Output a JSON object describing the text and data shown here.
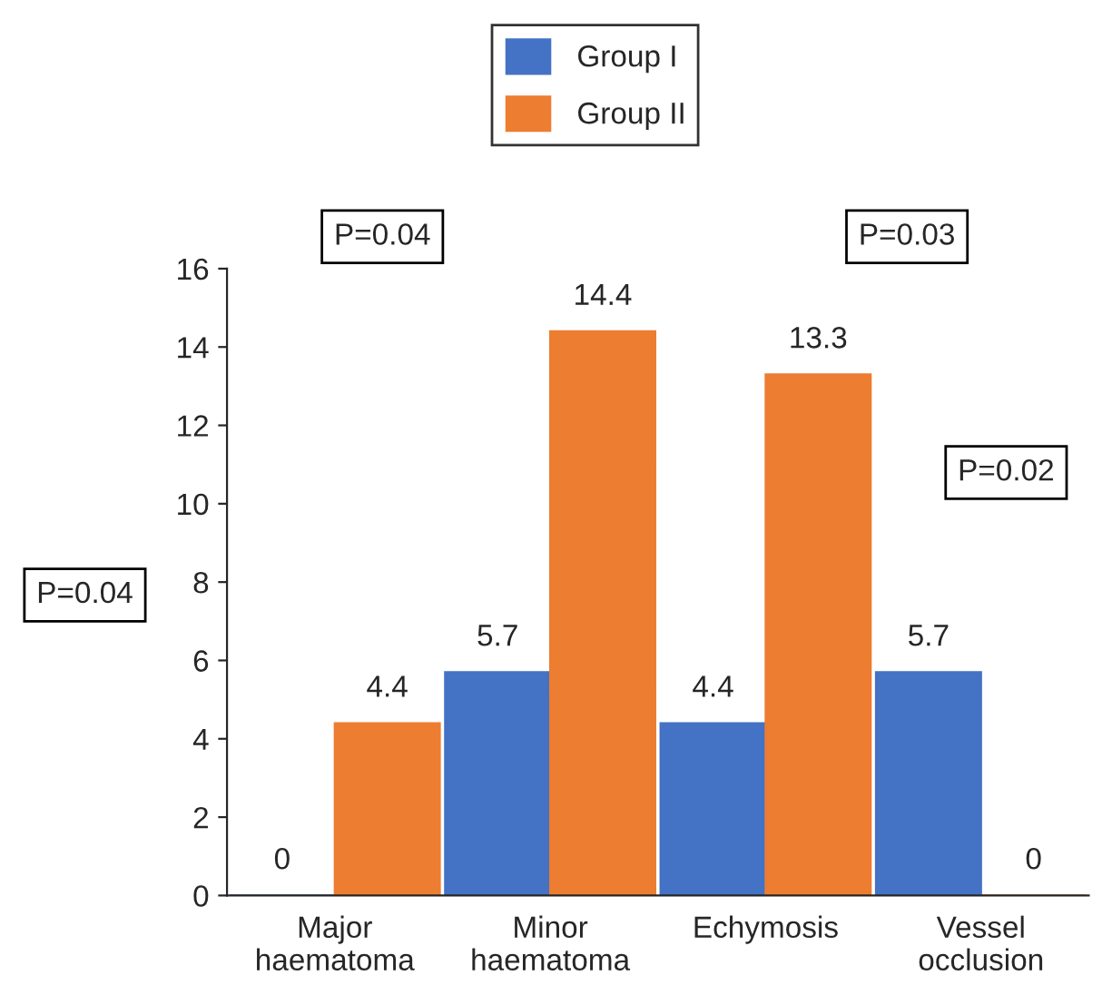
{
  "chart_data": {
    "type": "bar",
    "categories": [
      "Major\nhaematoma",
      "Minor\nhaematoma",
      "Echymosis",
      "Vessel\nocclusion"
    ],
    "series": [
      {
        "name": "Group I",
        "color": "#4472c4",
        "values": [
          0,
          5.7,
          4.4,
          5.7
        ]
      },
      {
        "name": "Group II",
        "color": "#ed7d31",
        "values": [
          4.4,
          14.4,
          13.3,
          0
        ]
      }
    ],
    "ylim": [
      0,
      16
    ],
    "yticks": [
      0,
      2,
      4,
      6,
      8,
      10,
      12,
      14,
      16
    ],
    "data_labels": true,
    "legend": "top",
    "grid": false,
    "annotations": [
      "P=0.04",
      "P=0.04",
      "P=0.03",
      "P=0.02"
    ]
  }
}
